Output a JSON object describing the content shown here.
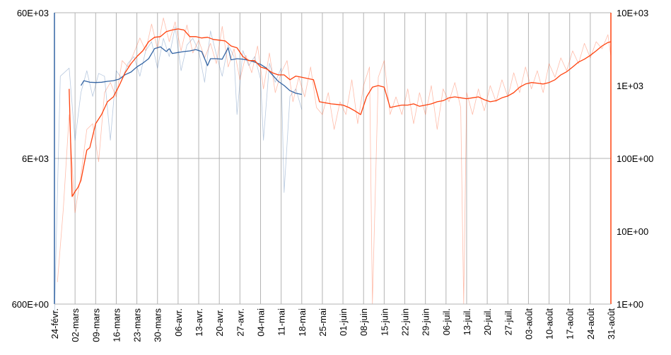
{
  "chart_data": {
    "type": "line",
    "title": "",
    "xlabel": "",
    "ylabel_left": "",
    "ylabel_right": "",
    "x_tick_labels": [
      "24-févr.",
      "02-mars",
      "09-mars",
      "16-mars",
      "23-mars",
      "30-mars",
      "06-avr.",
      "13-avr.",
      "20-avr.",
      "27-avr.",
      "04-mai",
      "11-mai",
      "18-mai",
      "25-mai",
      "01-juin",
      "08-juin",
      "15-juin",
      "22-juin",
      "29-juin",
      "06-juil.",
      "13-juil.",
      "20-juil.",
      "27-juil.",
      "03-août",
      "10-août",
      "17-août",
      "24-août",
      "31-août"
    ],
    "x_range_days": [
      0,
      189
    ],
    "y_left": {
      "scale": "log",
      "ylim": [
        600,
        60000
      ],
      "tick_values": [
        600,
        6000,
        60000
      ],
      "tick_labels": [
        "600E+00",
        "6E+03",
        "60E+03"
      ],
      "color": "#3465a4"
    },
    "y_right": {
      "scale": "log",
      "ylim": [
        1,
        10000
      ],
      "tick_values": [
        1,
        10,
        100,
        1000,
        10000
      ],
      "tick_labels": [
        "1E+00",
        "10E+00",
        "100E+00",
        "1E+03",
        "10E+03"
      ],
      "color": "#ff420e"
    },
    "grid": true,
    "legend": "none",
    "series": [
      {
        "axis": "left",
        "color": "#3465a4",
        "style": "moving-average",
        "points": [
          [
            9,
            19000
          ],
          [
            10,
            20500
          ],
          [
            12,
            20000
          ],
          [
            14,
            19900
          ],
          [
            16,
            20000
          ],
          [
            18,
            20300
          ],
          [
            20,
            20500
          ],
          [
            22,
            21000
          ],
          [
            24,
            22500
          ],
          [
            26,
            23500
          ],
          [
            28,
            25500
          ],
          [
            30,
            27000
          ],
          [
            32,
            29000
          ],
          [
            34,
            34000
          ],
          [
            36,
            35000
          ],
          [
            38,
            32500
          ],
          [
            39,
            34000
          ],
          [
            40,
            31500
          ],
          [
            42,
            32000
          ],
          [
            44,
            32500
          ],
          [
            46,
            32800
          ],
          [
            48,
            33500
          ],
          [
            50,
            32500
          ],
          [
            52,
            26000
          ],
          [
            53,
            29000
          ],
          [
            55,
            29000
          ],
          [
            57,
            28800
          ],
          [
            59,
            34500
          ],
          [
            60,
            28500
          ],
          [
            62,
            29000
          ],
          [
            64,
            28800
          ],
          [
            66,
            28300
          ],
          [
            68,
            27500
          ],
          [
            70,
            26500
          ],
          [
            72,
            25000
          ],
          [
            74,
            22500
          ],
          [
            76,
            20300
          ],
          [
            78,
            19000
          ],
          [
            80,
            17500
          ],
          [
            82,
            16800
          ],
          [
            84,
            16500
          ]
        ]
      },
      {
        "axis": "left",
        "color": "#3465a4",
        "style": "daily-faint",
        "points": [
          [
            0,
            500
          ],
          [
            2,
            22000
          ],
          [
            5,
            25000
          ],
          [
            7,
            8000
          ],
          [
            9,
            17000
          ],
          [
            11,
            24000
          ],
          [
            13,
            16000
          ],
          [
            15,
            23000
          ],
          [
            17,
            22000
          ],
          [
            19,
            8000
          ],
          [
            21,
            24000
          ],
          [
            23,
            21000
          ],
          [
            25,
            27000
          ],
          [
            27,
            30000
          ],
          [
            29,
            22000
          ],
          [
            31,
            33000
          ],
          [
            33,
            38000
          ],
          [
            35,
            25000
          ],
          [
            37,
            40000
          ],
          [
            39,
            30000
          ],
          [
            41,
            48000
          ],
          [
            43,
            24000
          ],
          [
            45,
            36000
          ],
          [
            47,
            40000
          ],
          [
            49,
            33000
          ],
          [
            51,
            20000
          ],
          [
            53,
            45000
          ],
          [
            55,
            31000
          ],
          [
            57,
            22000
          ],
          [
            59,
            36000
          ],
          [
            61,
            30000
          ],
          [
            62,
            12000
          ],
          [
            64,
            33000
          ],
          [
            66,
            26000
          ],
          [
            68,
            30000
          ],
          [
            70,
            21000
          ],
          [
            71,
            8000
          ],
          [
            73,
            27000
          ],
          [
            75,
            20000
          ],
          [
            77,
            25000
          ],
          [
            78,
            3500
          ],
          [
            80,
            16000
          ],
          [
            82,
            18000
          ],
          [
            84,
            13000
          ]
        ]
      },
      {
        "axis": "right",
        "color": "#ff420e",
        "style": "moving-average",
        "points": [
          [
            5,
            900
          ],
          [
            6,
            30
          ],
          [
            7,
            35
          ],
          [
            8,
            40
          ],
          [
            9,
            50
          ],
          [
            10,
            80
          ],
          [
            11,
            130
          ],
          [
            12,
            140
          ],
          [
            14,
            300
          ],
          [
            16,
            400
          ],
          [
            18,
            600
          ],
          [
            20,
            700
          ],
          [
            22,
            1000
          ],
          [
            24,
            1500
          ],
          [
            26,
            2000
          ],
          [
            28,
            2500
          ],
          [
            30,
            3000
          ],
          [
            32,
            4000
          ],
          [
            34,
            4600
          ],
          [
            36,
            4700
          ],
          [
            38,
            5500
          ],
          [
            40,
            5800
          ],
          [
            42,
            6000
          ],
          [
            44,
            5800
          ],
          [
            46,
            4700
          ],
          [
            48,
            4700
          ],
          [
            50,
            4500
          ],
          [
            52,
            4600
          ],
          [
            54,
            4300
          ],
          [
            56,
            4200
          ],
          [
            58,
            4100
          ],
          [
            60,
            3500
          ],
          [
            62,
            3300
          ],
          [
            64,
            2500
          ],
          [
            66,
            2200
          ],
          [
            68,
            2200
          ],
          [
            70,
            1800
          ],
          [
            72,
            1700
          ],
          [
            74,
            1500
          ],
          [
            76,
            1400
          ],
          [
            78,
            1400
          ],
          [
            80,
            1200
          ],
          [
            82,
            1350
          ],
          [
            84,
            1300
          ],
          [
            86,
            1250
          ],
          [
            88,
            1200
          ],
          [
            90,
            600
          ],
          [
            92,
            580
          ],
          [
            94,
            560
          ],
          [
            96,
            550
          ],
          [
            98,
            540
          ],
          [
            100,
            500
          ],
          [
            102,
            450
          ],
          [
            104,
            400
          ],
          [
            106,
            700
          ],
          [
            108,
            950
          ],
          [
            110,
            1000
          ],
          [
            112,
            950
          ],
          [
            114,
            500
          ],
          [
            116,
            520
          ],
          [
            118,
            540
          ],
          [
            120,
            540
          ],
          [
            122,
            560
          ],
          [
            124,
            520
          ],
          [
            126,
            540
          ],
          [
            128,
            560
          ],
          [
            130,
            600
          ],
          [
            132,
            620
          ],
          [
            134,
            680
          ],
          [
            136,
            700
          ],
          [
            138,
            680
          ],
          [
            140,
            660
          ],
          [
            142,
            680
          ],
          [
            144,
            700
          ],
          [
            146,
            640
          ],
          [
            148,
            600
          ],
          [
            150,
            620
          ],
          [
            152,
            680
          ],
          [
            154,
            720
          ],
          [
            156,
            800
          ],
          [
            158,
            950
          ],
          [
            160,
            1050
          ],
          [
            162,
            1100
          ],
          [
            164,
            1080
          ],
          [
            166,
            1050
          ],
          [
            168,
            1100
          ],
          [
            170,
            1200
          ],
          [
            172,
            1400
          ],
          [
            174,
            1550
          ],
          [
            176,
            1800
          ],
          [
            178,
            2100
          ],
          [
            180,
            2300
          ],
          [
            182,
            2600
          ],
          [
            184,
            3000
          ],
          [
            186,
            3500
          ],
          [
            188,
            3900
          ],
          [
            189,
            4000
          ]
        ]
      },
      {
        "axis": "right",
        "color": "#ff420e",
        "style": "daily-faint",
        "points": [
          [
            1,
            2
          ],
          [
            3,
            20
          ],
          [
            5,
            400
          ],
          [
            7,
            18
          ],
          [
            9,
            60
          ],
          [
            11,
            250
          ],
          [
            13,
            300
          ],
          [
            15,
            90
          ],
          [
            17,
            800
          ],
          [
            19,
            1100
          ],
          [
            21,
            700
          ],
          [
            23,
            2200
          ],
          [
            25,
            1800
          ],
          [
            27,
            2800
          ],
          [
            29,
            4500
          ],
          [
            31,
            3000
          ],
          [
            33,
            7000
          ],
          [
            35,
            3200
          ],
          [
            37,
            8500
          ],
          [
            39,
            4000
          ],
          [
            41,
            7500
          ],
          [
            43,
            3000
          ],
          [
            45,
            6800
          ],
          [
            47,
            2800
          ],
          [
            49,
            4200
          ],
          [
            51,
            2400
          ],
          [
            53,
            3800
          ],
          [
            55,
            2000
          ],
          [
            57,
            6500
          ],
          [
            59,
            1800
          ],
          [
            61,
            3200
          ],
          [
            63,
            1200
          ],
          [
            65,
            2600
          ],
          [
            67,
            1500
          ],
          [
            69,
            3500
          ],
          [
            71,
            900
          ],
          [
            73,
            2800
          ],
          [
            75,
            800
          ],
          [
            77,
            1500
          ],
          [
            79,
            2200
          ],
          [
            81,
            600
          ],
          [
            83,
            1300
          ],
          [
            85,
            700
          ],
          [
            87,
            1800
          ],
          [
            89,
            500
          ],
          [
            91,
            400
          ],
          [
            93,
            800
          ],
          [
            95,
            250
          ],
          [
            97,
            600
          ],
          [
            99,
            400
          ],
          [
            101,
            1200
          ],
          [
            103,
            300
          ],
          [
            105,
            1000
          ],
          [
            107,
            1800
          ],
          [
            108,
            1
          ],
          [
            110,
            1300
          ],
          [
            112,
            2200
          ],
          [
            114,
            400
          ],
          [
            116,
            700
          ],
          [
            118,
            400
          ],
          [
            120,
            900
          ],
          [
            122,
            300
          ],
          [
            124,
            800
          ],
          [
            126,
            400
          ],
          [
            128,
            1000
          ],
          [
            130,
            250
          ],
          [
            132,
            900
          ],
          [
            134,
            600
          ],
          [
            136,
            1100
          ],
          [
            138,
            500
          ],
          [
            139,
            1
          ],
          [
            140,
            800
          ],
          [
            142,
            400
          ],
          [
            144,
            900
          ],
          [
            146,
            450
          ],
          [
            148,
            1000
          ],
          [
            150,
            600
          ],
          [
            152,
            1200
          ],
          [
            154,
            700
          ],
          [
            156,
            1500
          ],
          [
            158,
            800
          ],
          [
            160,
            1800
          ],
          [
            162,
            900
          ],
          [
            164,
            1600
          ],
          [
            166,
            800
          ],
          [
            168,
            2000
          ],
          [
            170,
            1300
          ],
          [
            172,
            2400
          ],
          [
            174,
            1600
          ],
          [
            176,
            3000
          ],
          [
            178,
            2000
          ],
          [
            180,
            3800
          ],
          [
            182,
            2400
          ],
          [
            184,
            4000
          ],
          [
            186,
            3200
          ],
          [
            188,
            5000
          ],
          [
            189,
            2500
          ]
        ]
      }
    ]
  }
}
